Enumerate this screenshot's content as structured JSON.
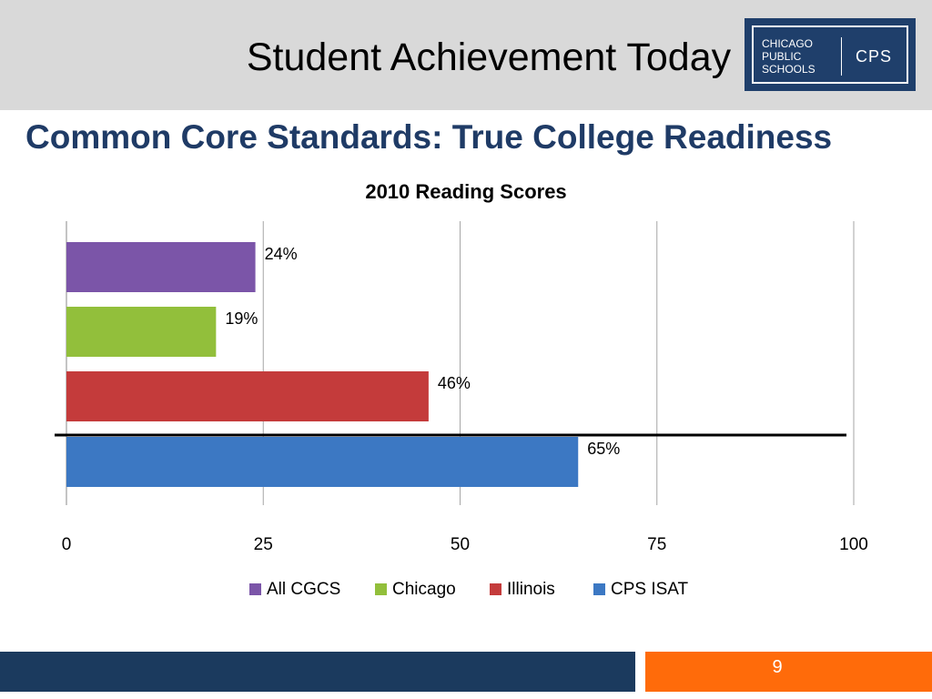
{
  "slide": {
    "title": "Student Achievement Today",
    "subtitle": "Common Core Standards: True College Readiness",
    "page_number": "9"
  },
  "logo": {
    "lines": [
      "CHICAGO",
      "PUBLIC",
      "SCHOOLS"
    ],
    "abbr": "CPS"
  },
  "colors": {
    "header_band": "#d9d9d9",
    "subtitle": "#1f3b66",
    "footer_blue": "#1b3a5e",
    "footer_orange": "#ff6b0a"
  },
  "chart_data": {
    "type": "bar",
    "orientation": "horizontal",
    "title": "2010 Reading Scores",
    "xlim": [
      0,
      100
    ],
    "xticks": [
      0,
      25,
      50,
      75,
      100
    ],
    "grid": true,
    "legend_position": "bottom",
    "series": [
      {
        "name": "All CGCS",
        "value": 24,
        "label": "24%",
        "color": "#7b55a8"
      },
      {
        "name": "Chicago",
        "value": 19,
        "label": "19%",
        "color": "#92bf3b"
      },
      {
        "name": "Illinois",
        "value": 46,
        "label": "46%",
        "color": "#c43b3b"
      },
      {
        "name": "CPS ISAT",
        "value": 65,
        "label": "65%",
        "color": "#3c78c3"
      }
    ],
    "annotation": "horizontal reference line between Illinois and CPS ISAT bars"
  }
}
